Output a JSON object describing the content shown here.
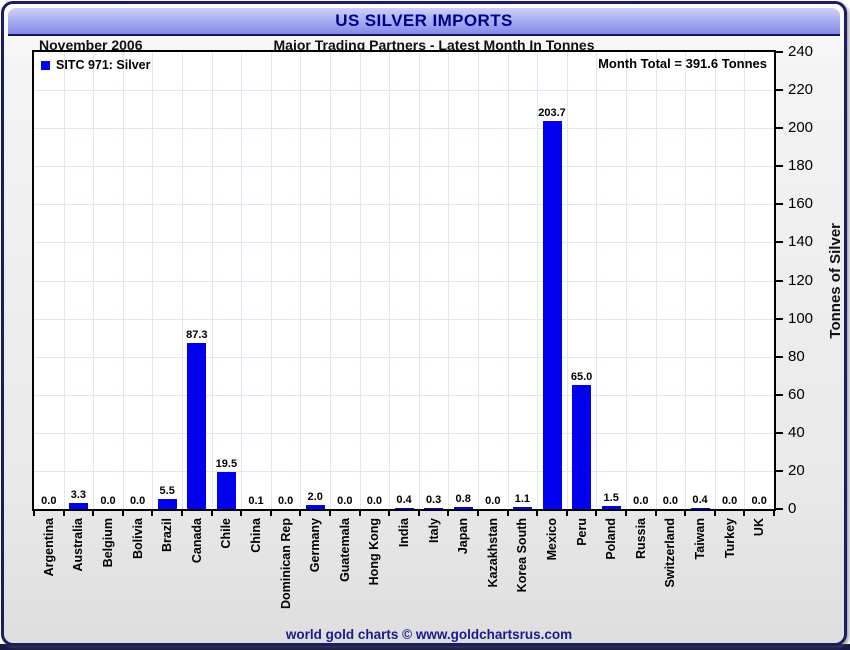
{
  "header": {
    "title": "US SILVER IMPORTS",
    "date_label": "November 2006",
    "subtitle": "Major Trading Partners - Latest Month In Tonnes"
  },
  "legend": {
    "series_label": "SITC 971: Silver",
    "swatch_color": "#0101ee"
  },
  "annotations": {
    "month_total": "Month Total = 391.6 Tonnes"
  },
  "footer": {
    "credit": "world gold charts © www.goldchartsrus.com"
  },
  "colors": {
    "bar": "#0101ee",
    "title_navy": "#00008b",
    "grid": "#dde8f5",
    "frame_border": "#1c1c66",
    "band_top": "#cdd0f8",
    "band_bottom": "#8389e8"
  },
  "chart_data": {
    "type": "bar",
    "title": "US SILVER IMPORTS",
    "subtitle": "Major Trading Partners - Latest Month In Tonnes",
    "series_name": "SITC 971: Silver",
    "categories": [
      "Argentina",
      "Australia",
      "Belgium",
      "Bolivia",
      "Brazil",
      "Canada",
      "Chile",
      "China",
      "Dominican Rep",
      "Germany",
      "Guatemala",
      "Hong Kong",
      "India",
      "Italy",
      "Japan",
      "Kazakhstan",
      "Korea South",
      "Mexico",
      "Peru",
      "Poland",
      "Russia",
      "Switzerland",
      "Taiwan",
      "Turkey",
      "UK"
    ],
    "values": [
      0.0,
      3.3,
      0.0,
      0.0,
      5.5,
      87.3,
      19.5,
      0.1,
      0.0,
      2.0,
      0.0,
      0.0,
      0.4,
      0.3,
      0.8,
      0.0,
      1.1,
      203.7,
      65.0,
      1.5,
      0.0,
      0.0,
      0.4,
      0.0,
      0.0
    ],
    "month_total_tonnes": 391.6,
    "xlabel": "",
    "ylabel": "Tonnes of Silver",
    "ylim": [
      0,
      240
    ],
    "ytick_step": 20,
    "grid": true,
    "legend_position": "top-left",
    "value_labels": true,
    "value_label_decimals": 1
  }
}
